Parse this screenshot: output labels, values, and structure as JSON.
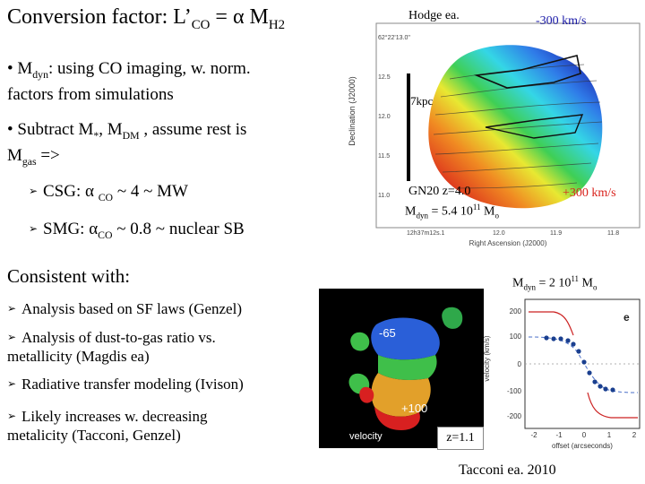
{
  "title": {
    "main": "Conversion factor: L’",
    "co_sub": "CO",
    "mid": " = α M",
    "h2_sub": "H2"
  },
  "bullets": {
    "b1_pre": "• M",
    "b1_sub": "dyn",
    "b1_post": ":  using CO imaging,  w. norm.",
    "b1_line2": "factors from simulations",
    "b2_pre": "• Subtract M",
    "b2_star": "*",
    "b2_mid": ", M",
    "b2_sub": "DM",
    "b2_post": " , assume rest is",
    "b2_line2_pre": "M",
    "b2_line2_sub": "gas",
    "b2_line2_post": " =>",
    "arrow_glyph": "➢",
    "csg_pre": "CSG: α ",
    "csg_sub": "CO",
    "csg_post": " ~ 4 ~ MW",
    "smg_pre": "SMG:  α",
    "smg_sub": "CO",
    "smg_post": " ~ 0.8 ~ nuclear SB"
  },
  "consistent": {
    "heading": "Consistent with:",
    "items": [
      "Analysis based on SF laws (Genzel)",
      "Analysis of dust-to-gas ratio vs.",
      "metallicity (Magdis ea)",
      "Radiative transfer modeling (Ivison)",
      "Likely increases w. decreasing",
      "metalicity (Tacconi, Genzel)"
    ]
  },
  "hodge": {
    "ref": "Hodge ea.",
    "v_neg": "-300 km/s",
    "v_pos": "+300 km/s",
    "scale": "7kpc",
    "gal_name": "GN20 z=4.0",
    "mdyn_pre": "M",
    "mdyn_sub": "dyn",
    "mdyn_mid": " = 5.4 10",
    "mdyn_sup": "11",
    "mdyn_post": " M",
    "mdyn_o": "o",
    "ylabel": "Declination  (J2000)",
    "xlabel": "Right Ascension  (J2000)",
    "ra_ticks": [
      "12h37m12s.1",
      "12.0",
      "11.9",
      "11.8"
    ],
    "dec_ticks": [
      "62°22'13.0\"",
      "12.5",
      "12.0",
      "11.5",
      "11.0"
    ]
  },
  "tacconi": {
    "mdyn_pre": "M",
    "mdyn_sub": "dyn",
    "mdyn_mid": " = 2 10",
    "mdyn_sup": "11",
    "mdyn_post": " M",
    "mdyn_o": "o",
    "vel_neg": "-65",
    "vel_pos": "+100",
    "map_label": "velocity",
    "z_label": "z=1.1",
    "panel_letter": "e",
    "ylabel": "velocity (km/s)",
    "xlabel": "offset (arcseconds)",
    "yticks": [
      "200",
      "100",
      "0",
      "-100",
      "-200"
    ],
    "xticks": [
      "-2",
      "-1",
      "0",
      "1",
      "2"
    ],
    "credit": "Tacconi ea. 2010"
  },
  "colors": {
    "curve": "#cc2222",
    "points": "#1a3f8f",
    "map_bg": "#000000"
  }
}
